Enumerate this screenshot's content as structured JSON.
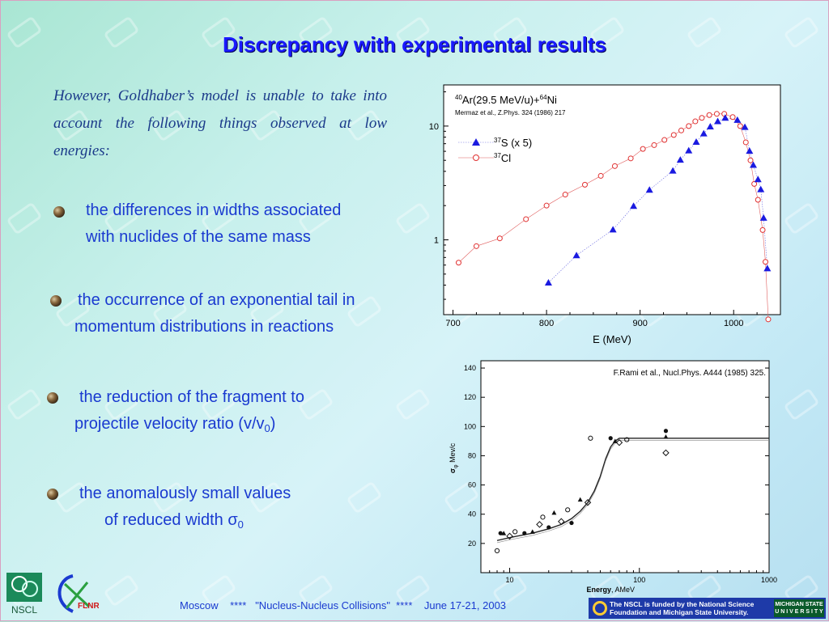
{
  "title": "Discrepancy with experimental results",
  "intro": "However, Goldhaber’s model is unable to take into account the following things observed at low energies:",
  "bullets": {
    "b1_line1": "the differences in widths associated",
    "b1_line2": "with nuclides of the same mass",
    "b2_line1": "the occurrence of an exponential tail in",
    "b2_line2": "momentum distributions in reactions",
    "b3_line1": "the reduction of the fragment to",
    "b3_line2_pre": "projectile velocity ratio (v/v",
    "b3_line2_sub": "0",
    "b3_line2_post": ")",
    "b4_line1": "the anomalously small values",
    "b4_line2_pre": "of reduced width σ",
    "b4_line2_sub": "0"
  },
  "footer": {
    "text": "Moscow    ****   \"Nucleus-Nucleus Collisions\"  ****    June 17-21, 2003",
    "nscl_line1": "The NSCL is funded by the National Science",
    "nscl_line2": "Foundation and Michigan State University.",
    "msu_line1": "MICHIGAN STATE",
    "msu_line2": "U N I V E R S I T Y",
    "logo_nscl": "NSCL",
    "logo_flnr": "FLNR"
  },
  "colors": {
    "title": "#1a1aff",
    "bullet_text": "#1a3ad0",
    "intro_text": "#1b3a8a",
    "s_series": "#1a1ae0",
    "cl_series": "#e03030"
  },
  "chart_data": [
    {
      "type": "scatter",
      "title_pre": "Ar(29.5 MeV/u)+",
      "title_ar_mass": "40",
      "title_ni_mass": "64",
      "title_ni": "Ni",
      "reference": "Mermaz et al., Z.Phys. 324 (1986) 217",
      "xlabel": "E (MeV)",
      "ylabel": "",
      "xlim": [
        690,
        1050
      ],
      "ylim": [
        0.22,
        23
      ],
      "yscale": "log",
      "x_ticks": [
        700,
        800,
        900,
        1000
      ],
      "y_ticks": [
        1,
        10
      ],
      "legend_position": "top-left",
      "series": [
        {
          "name": "S  (x 5)",
          "mass": "37",
          "element": "S",
          "suffix": "  (x 5)",
          "marker": "triangle",
          "x": [
            802,
            832,
            871,
            893,
            910,
            935,
            943,
            952,
            960,
            968,
            975,
            983,
            991,
            1004,
            1012,
            1017,
            1021,
            1026,
            1029,
            1032,
            1036
          ],
          "y": [
            0.42,
            0.73,
            1.23,
            1.98,
            2.75,
            4.05,
            5.05,
            6.1,
            7.25,
            8.6,
            9.9,
            11.0,
            11.8,
            11.3,
            9.8,
            6.05,
            4.55,
            3.4,
            2.78,
            1.56,
            0.56
          ]
        },
        {
          "name": "Cl",
          "mass": "37",
          "element": "Cl",
          "suffix": "",
          "marker": "circle",
          "x": [
            706,
            725,
            750,
            778,
            800,
            820,
            841,
            858,
            873,
            890,
            903,
            915,
            926,
            936,
            944,
            952,
            959,
            966,
            974,
            982,
            990,
            999,
            1007,
            1013,
            1018,
            1022,
            1026,
            1031,
            1034,
            1037
          ],
          "y": [
            0.63,
            0.88,
            1.03,
            1.52,
            2.0,
            2.5,
            3.05,
            3.65,
            4.45,
            5.2,
            6.3,
            6.8,
            7.55,
            8.35,
            9.15,
            10.0,
            11.0,
            11.8,
            12.5,
            12.8,
            12.8,
            12.0,
            10.0,
            7.2,
            5.0,
            3.1,
            2.25,
            1.22,
            0.64,
            0.2
          ]
        }
      ]
    },
    {
      "type": "scatter",
      "reference": "F.Rami et al., Nucl.Phys. A444 (1985) 325.",
      "xlabel_bold": "Energy",
      "xlabel_rest": ", AMeV",
      "ylabel_sym": "σ",
      "ylabel_sub": "φ",
      "ylabel_unit": "Mev/c",
      "xscale": "log",
      "xlim": [
        6,
        1000
      ],
      "ylim": [
        0,
        145
      ],
      "x_ticks": [
        10,
        100,
        1000
      ],
      "y_ticks": [
        20,
        40,
        60,
        80,
        100,
        120,
        140
      ],
      "series": [
        {
          "name": "data",
          "marker": "mixed",
          "x": [
            8,
            8.5,
            9,
            10,
            11,
            13,
            15,
            17,
            18,
            20,
            22,
            25,
            28,
            30,
            35,
            40,
            42,
            60,
            65,
            70,
            80,
            160,
            160,
            160
          ],
          "y": [
            15,
            27,
            27,
            25,
            28,
            27,
            28,
            33,
            38,
            31,
            41,
            35,
            43,
            34,
            50,
            48,
            92,
            92,
            90,
            89,
            91,
            97,
            93,
            82
          ]
        },
        {
          "name": "fit",
          "marker": "line",
          "x": [
            8,
            10,
            15,
            20,
            25,
            30,
            35,
            40,
            45,
            50,
            55,
            60,
            65,
            70,
            80,
            100,
            150,
            300,
            1000
          ],
          "y": [
            22,
            24,
            27,
            30,
            33,
            37,
            42,
            48,
            56,
            66,
            78,
            86,
            90,
            92,
            92,
            92,
            92,
            92,
            92
          ]
        }
      ]
    }
  ]
}
